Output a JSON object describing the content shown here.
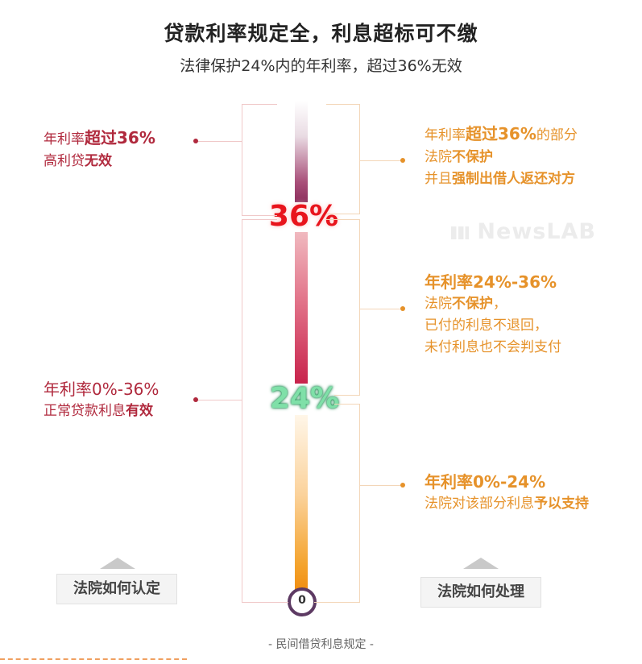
{
  "title": "贷款利率规定全，利息超标可不缴",
  "subtitle": "法律保护24%内的年利率，超过36%无效",
  "thermometer": {
    "label_36": "36%",
    "label_24": "24%",
    "bulb": "0"
  },
  "left": {
    "top": {
      "l1_pre": "年利率",
      "l1_bold": "超过36%",
      "l2_pre": "高利贷",
      "l2_bold": "无效"
    },
    "bottom": {
      "l1": "年利率0%-36%",
      "l2_pre": "正常贷款利息",
      "l2_bold": "有效"
    },
    "button": "法院如何认定"
  },
  "right": {
    "top": {
      "l1_pre": "年利率",
      "l1_bold": "超过36%",
      "l1_post": "的部分",
      "l2_pre": "法院",
      "l2_bold": "不保护",
      "l3_pre": "并且",
      "l3_bold": "强制出借人返还对方"
    },
    "middle": {
      "l1": "年利率24%-36%",
      "l2_pre": "法院",
      "l2_bold": "不保护",
      "l2_post": "，",
      "l3": "已付的利息不退回，",
      "l4": "未付利息也不会判支付"
    },
    "bottom": {
      "l1": "年利率0%-24%",
      "l2_pre": "法院对该部分利息",
      "l2_bold": "予以支持"
    },
    "button": "法院如何处理"
  },
  "watermark": "NewsLAB",
  "footer": "- 民间借贷利息规定 -",
  "colors": {
    "red": "#b0293d",
    "orange": "#e6922a",
    "pct36": "#e8141c",
    "pct24": "#7fe0a8"
  }
}
